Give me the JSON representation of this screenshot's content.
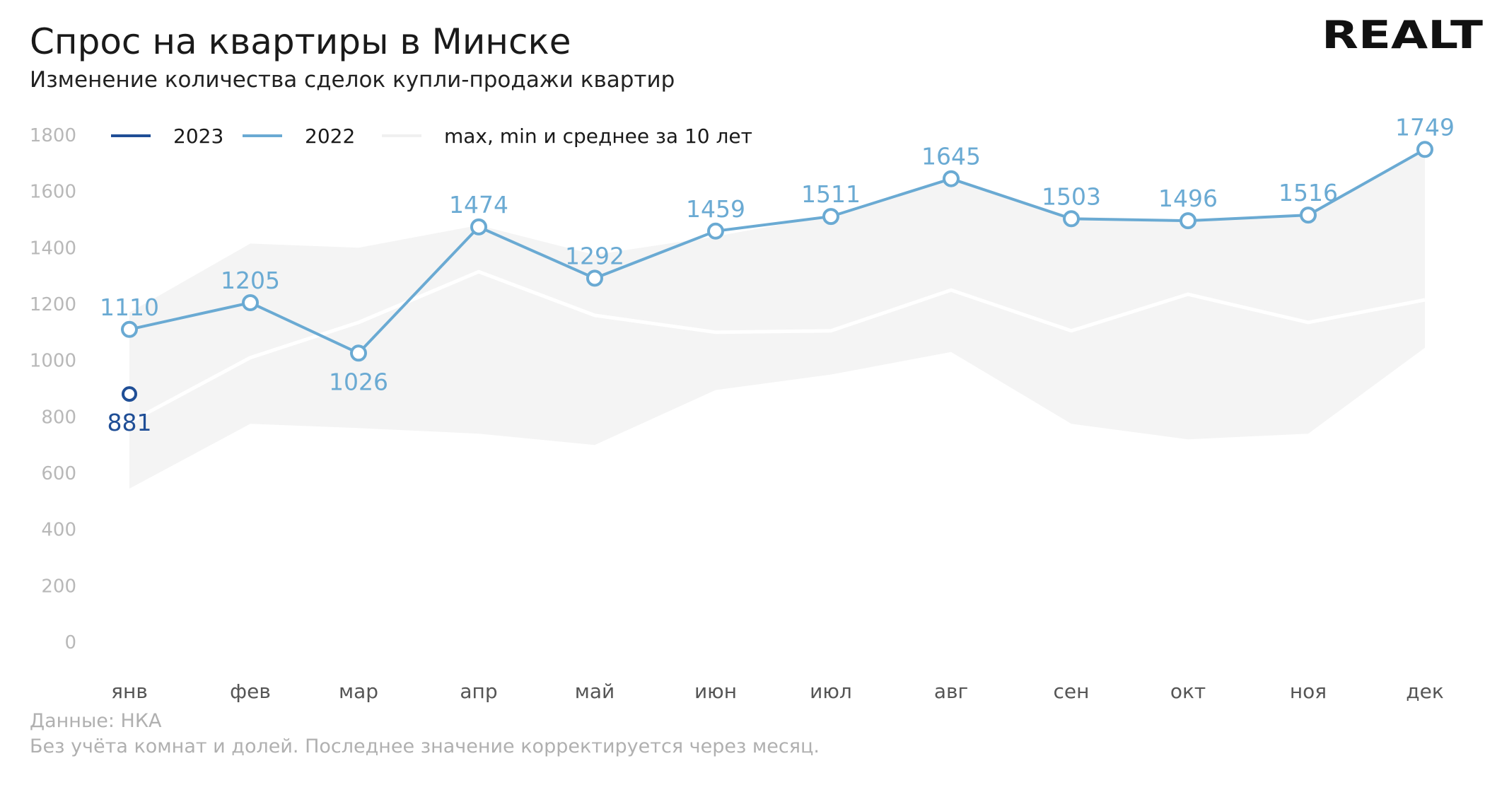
{
  "header": {
    "title": "Спрос на квартиры в Минске",
    "subtitle": "Изменение количества сделок купли-продажи квартир",
    "logo_text": "REALT"
  },
  "footer": {
    "source": "Данные: НКА",
    "note": "Без учёта комнат и долей. Последнее значение корректируется через месяц."
  },
  "colors": {
    "series_2023": "#1f4e96",
    "series_2022": "#6aaad3",
    "band": "#f4f4f4",
    "avg": "#ffffff"
  },
  "chart_data": {
    "type": "line",
    "categories": [
      "янв",
      "фев",
      "мар",
      "апр",
      "май",
      "июн",
      "июл",
      "авг",
      "сен",
      "окт",
      "ноя",
      "дек"
    ],
    "ylim": [
      0,
      1800
    ],
    "yticks": [
      0,
      200,
      400,
      600,
      800,
      1000,
      1200,
      1400,
      1600,
      1800
    ],
    "grid": false,
    "legend_position": "top-left",
    "legend": [
      "2023",
      "2022",
      "max, min и среднее за 10 лет"
    ],
    "series": [
      {
        "name": "2023",
        "values": [
          881,
          null,
          null,
          null,
          null,
          null,
          null,
          null,
          null,
          null,
          null,
          null
        ]
      },
      {
        "name": "2022",
        "values": [
          1110,
          1205,
          1026,
          1474,
          1292,
          1459,
          1511,
          1645,
          1503,
          1496,
          1516,
          1749
        ]
      }
    ],
    "band": {
      "name": "max, min и среднее за 10 лет",
      "max": [
        1170,
        1415,
        1400,
        1480,
        1375,
        1440,
        1515,
        1650,
        1510,
        1500,
        1520,
        1750
      ],
      "min": [
        545,
        775,
        760,
        740,
        700,
        895,
        950,
        1030,
        775,
        720,
        740,
        1045
      ],
      "avg": [
        780,
        1010,
        1135,
        1315,
        1160,
        1100,
        1105,
        1250,
        1105,
        1235,
        1135,
        1215
      ]
    }
  }
}
